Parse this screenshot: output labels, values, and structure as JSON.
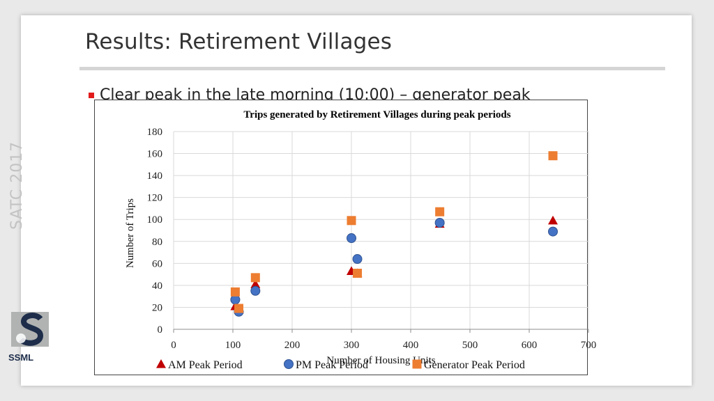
{
  "slide": {
    "title": "Results: Retirement Villages",
    "bullet": "Clear peak in the late morning (10:00) – generator peak",
    "side_label": "SATC 2017",
    "logo_text": "SSML"
  },
  "colors": {
    "am": "#c00000",
    "pm": "#4472c4",
    "generator": "#ed7d31",
    "bullet": "#e21b1b"
  },
  "chart_data": {
    "type": "scatter",
    "title": "Trips generated by Retirement Villages during peak periods",
    "xlabel": "Number of Housing Units",
    "ylabel": "Number of Trips",
    "xlim": [
      0,
      700
    ],
    "ylim": [
      0,
      180
    ],
    "xticks": [
      0,
      100,
      200,
      300,
      400,
      500,
      600,
      700
    ],
    "yticks": [
      0,
      20,
      40,
      60,
      80,
      100,
      120,
      140,
      160,
      180
    ],
    "grid": true,
    "legend_position": "bottom",
    "series": [
      {
        "name": "AM Peak Period",
        "marker": "triangle",
        "color": "#c00000",
        "points": [
          [
            104,
            21
          ],
          [
            110,
            18
          ],
          [
            138,
            41
          ],
          [
            300,
            53
          ],
          [
            310,
            51
          ],
          [
            449,
            96
          ],
          [
            640,
            99
          ]
        ]
      },
      {
        "name": "PM Peak Period",
        "marker": "circle",
        "color": "#4472c4",
        "points": [
          [
            104,
            27
          ],
          [
            110,
            16
          ],
          [
            138,
            35
          ],
          [
            300,
            83
          ],
          [
            310,
            64
          ],
          [
            449,
            97
          ],
          [
            640,
            89
          ]
        ]
      },
      {
        "name": "Generator Peak Period",
        "marker": "square",
        "color": "#ed7d31",
        "points": [
          [
            104,
            34
          ],
          [
            110,
            19
          ],
          [
            138,
            47
          ],
          [
            300,
            99
          ],
          [
            310,
            51
          ],
          [
            449,
            107
          ],
          [
            640,
            158
          ]
        ]
      }
    ]
  }
}
